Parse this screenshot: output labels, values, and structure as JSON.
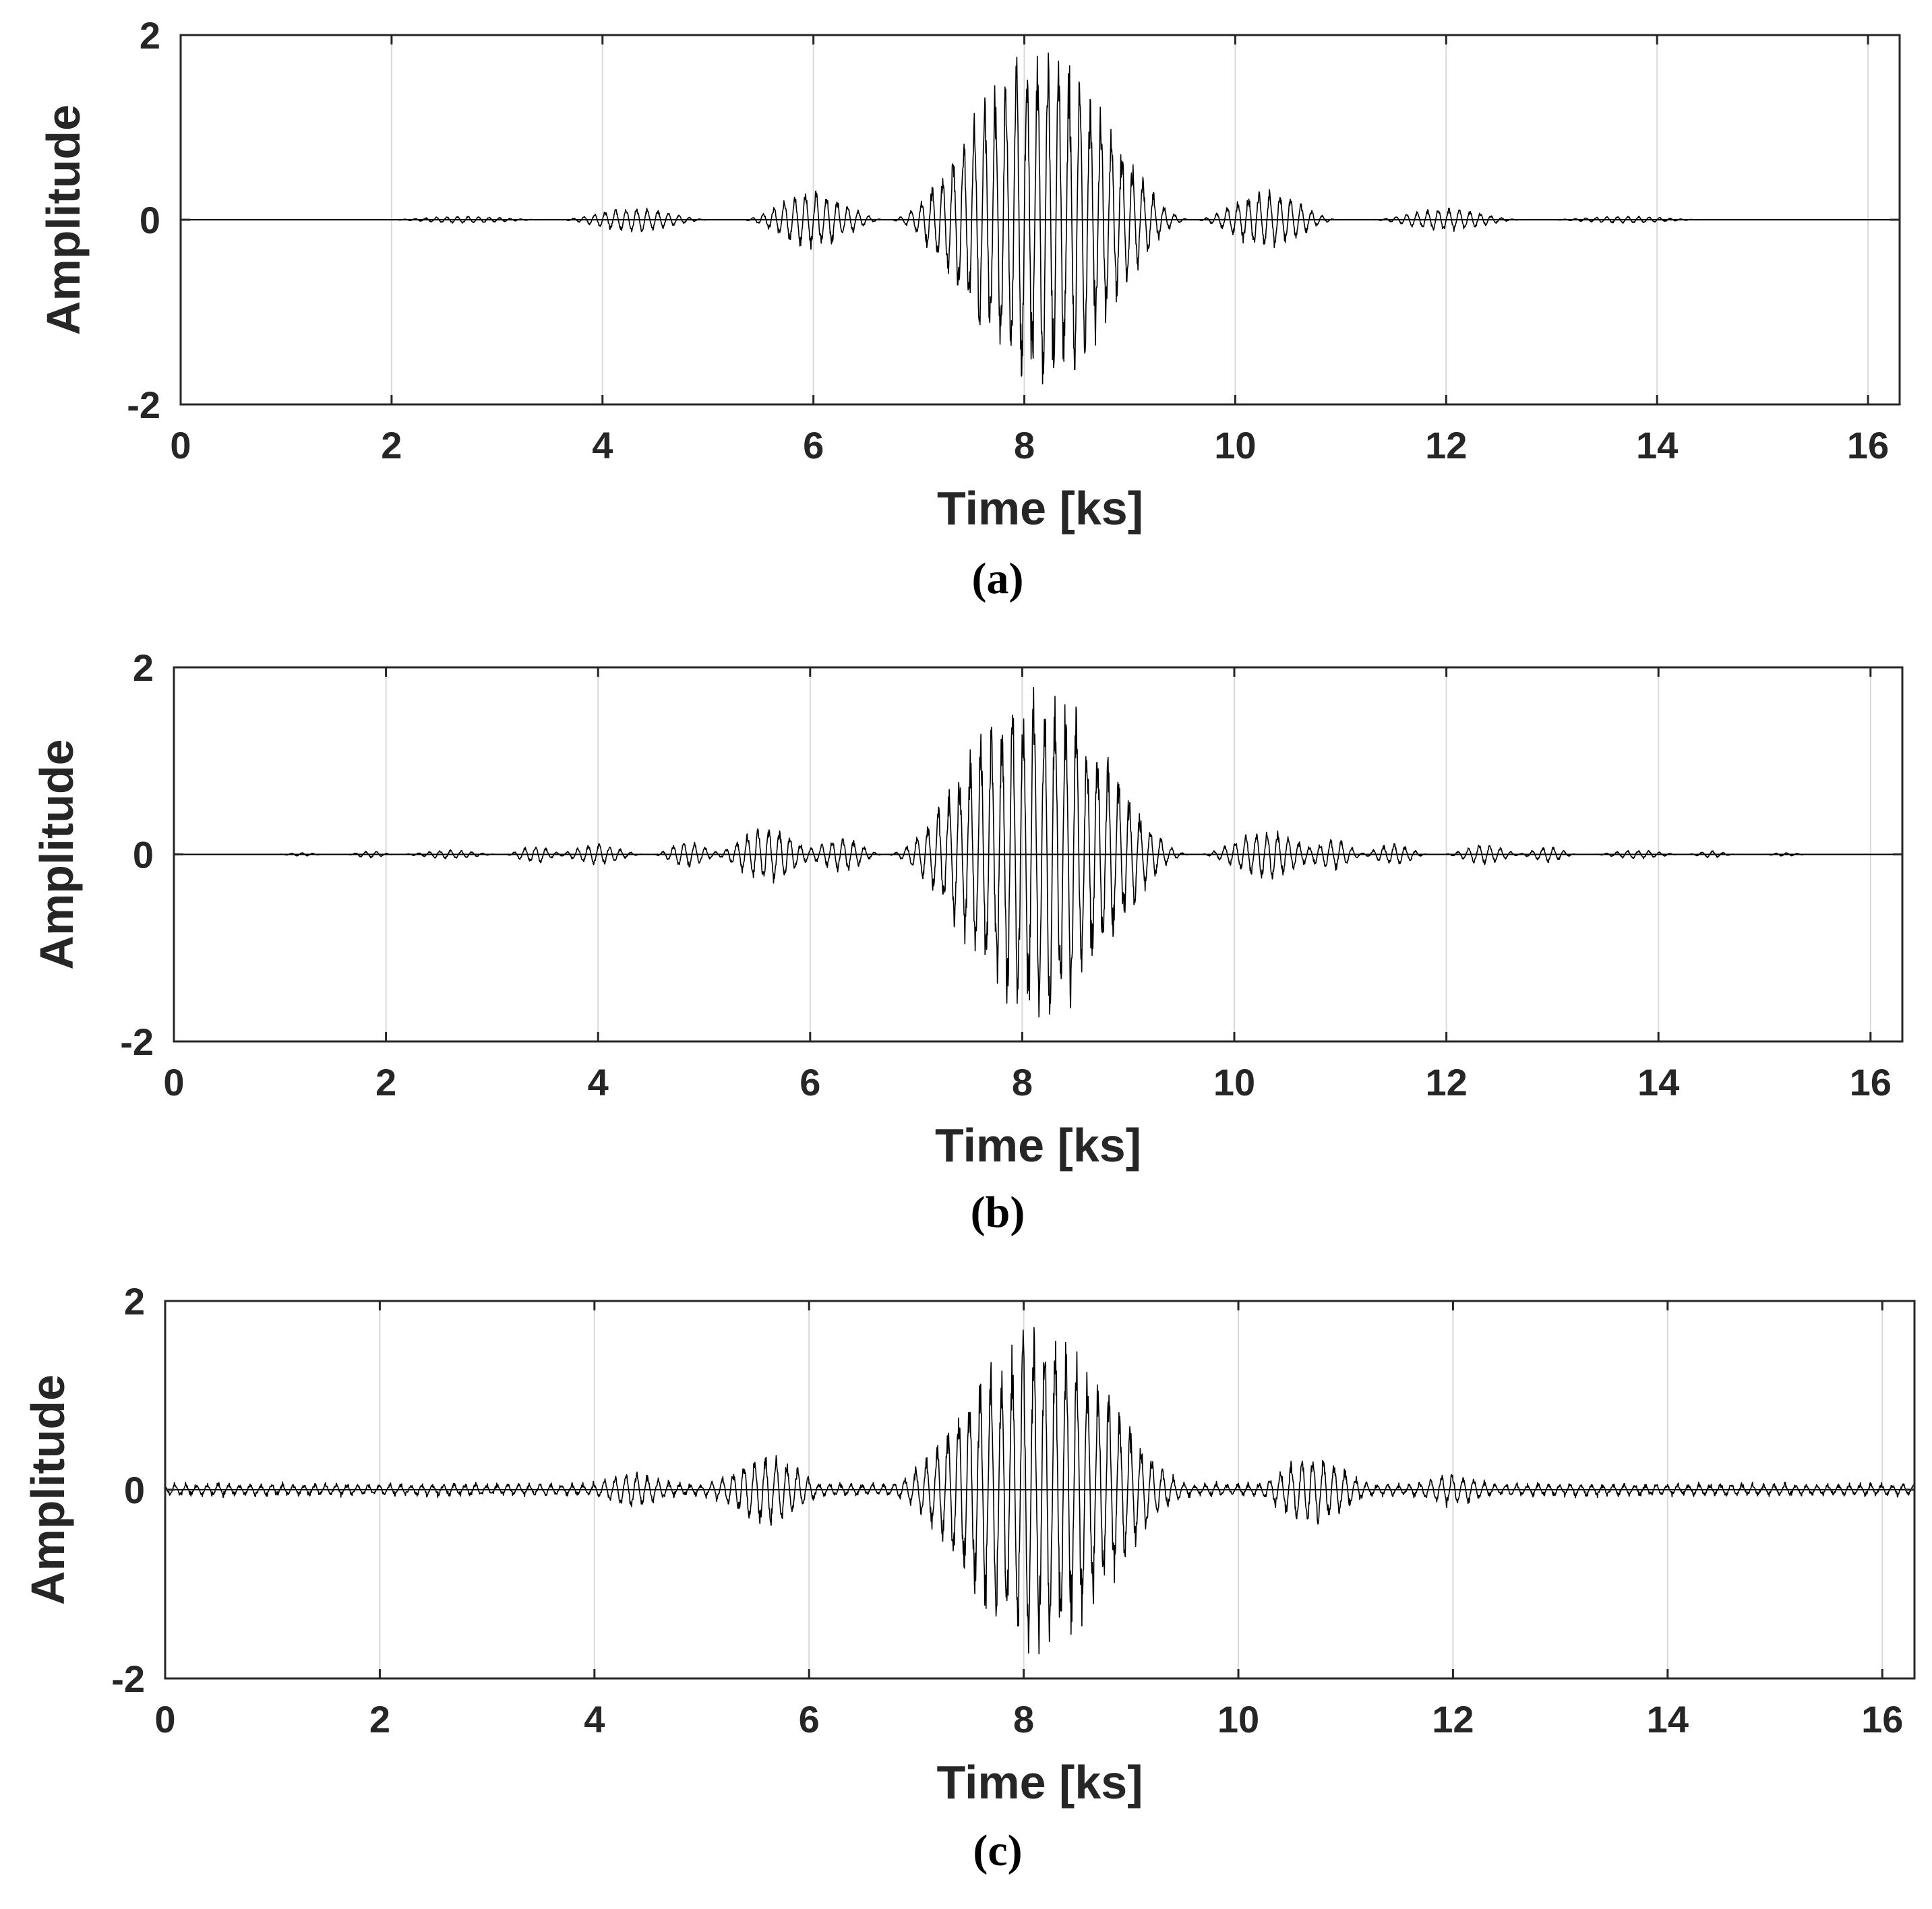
{
  "colors": {
    "signal": "#000000",
    "axes": "#262626",
    "grid": "#d9d9d9",
    "background": "#ffffff"
  },
  "chart_data": [
    {
      "type": "line",
      "caption": "(a)",
      "xlabel": "Time [ks]",
      "ylabel": "Amplitude",
      "xlim": [
        0,
        16.3
      ],
      "ylim": [
        -2,
        2
      ],
      "xticks": [
        0,
        2,
        4,
        6,
        8,
        10,
        12,
        14,
        16
      ],
      "xtick_labels": [
        "0",
        "2",
        "4",
        "6",
        "8",
        "10",
        "12",
        "14",
        "16"
      ],
      "yticks": [
        -2,
        0,
        2
      ],
      "ytick_labels": [
        "-2",
        "0",
        "2"
      ],
      "grid": "vertical",
      "series": [
        {
          "name": "signal",
          "carrier_period_ks": 0.1,
          "noise_floor": 0.0,
          "bursts": [
            {
              "center": 8.15,
              "half_width": 1.45,
              "peak": 1.95
            },
            {
              "center": 6.0,
              "half_width": 0.7,
              "peak": 0.33
            },
            {
              "center": 10.3,
              "half_width": 0.7,
              "peak": 0.33
            },
            {
              "center": 4.3,
              "half_width": 0.75,
              "peak": 0.14
            },
            {
              "center": 12.0,
              "half_width": 0.75,
              "peak": 0.13
            },
            {
              "center": 2.7,
              "half_width": 0.8,
              "peak": 0.04
            },
            {
              "center": 13.7,
              "half_width": 0.8,
              "peak": 0.04
            }
          ]
        }
      ]
    },
    {
      "type": "line",
      "caption": "(b)",
      "xlabel": "Time [ks]",
      "ylabel": "Amplitude",
      "xlim": [
        0,
        16.3
      ],
      "ylim": [
        -2,
        2
      ],
      "xticks": [
        0,
        2,
        4,
        6,
        8,
        10,
        12,
        14,
        16
      ],
      "xtick_labels": [
        "0",
        "2",
        "4",
        "6",
        "8",
        "10",
        "12",
        "14",
        "16"
      ],
      "yticks": [
        -2,
        0,
        2
      ],
      "ytick_labels": [
        "-2",
        "0",
        "2"
      ],
      "grid": "vertical",
      "series": [
        {
          "name": "signal",
          "carrier_period_ks": 0.1,
          "noise_floor": 0.0,
          "bursts": [
            {
              "center": 8.15,
              "half_width": 1.45,
              "peak": 1.9
            },
            {
              "center": 5.6,
              "half_width": 0.55,
              "peak": 0.33
            },
            {
              "center": 6.3,
              "half_width": 0.4,
              "peak": 0.2
            },
            {
              "center": 10.3,
              "half_width": 0.65,
              "peak": 0.27
            },
            {
              "center": 10.95,
              "half_width": 0.3,
              "peak": 0.18
            },
            {
              "center": 4.85,
              "half_width": 0.35,
              "peak": 0.15
            },
            {
              "center": 4.0,
              "half_width": 0.45,
              "peak": 0.12
            },
            {
              "center": 11.5,
              "half_width": 0.35,
              "peak": 0.12
            },
            {
              "center": 12.35,
              "half_width": 0.4,
              "peak": 0.11
            },
            {
              "center": 3.4,
              "half_width": 0.3,
              "peak": 0.1
            },
            {
              "center": 12.95,
              "half_width": 0.3,
              "peak": 0.09
            },
            {
              "center": 2.6,
              "half_width": 0.5,
              "peak": 0.05
            },
            {
              "center": 13.8,
              "half_width": 0.45,
              "peak": 0.05
            },
            {
              "center": 1.85,
              "half_width": 0.25,
              "peak": 0.04
            },
            {
              "center": 14.5,
              "half_width": 0.25,
              "peak": 0.04
            },
            {
              "center": 1.2,
              "half_width": 0.25,
              "peak": 0.02
            },
            {
              "center": 15.2,
              "half_width": 0.25,
              "peak": 0.02
            }
          ]
        }
      ]
    },
    {
      "type": "line",
      "caption": "(c)",
      "xlabel": "Time [ks]",
      "ylabel": "Amplitude",
      "xlim": [
        0,
        16.3
      ],
      "ylim": [
        -2,
        2
      ],
      "xticks": [
        0,
        2,
        4,
        6,
        8,
        10,
        12,
        14,
        16
      ],
      "xtick_labels": [
        "0",
        "2",
        "4",
        "6",
        "8",
        "10",
        "12",
        "14",
        "16"
      ],
      "yticks": [
        -2,
        0,
        2
      ],
      "ytick_labels": [
        "-2",
        "0",
        "2"
      ],
      "grid": "vertical",
      "series": [
        {
          "name": "signal",
          "carrier_period_ks": 0.1,
          "noise_floor": 0.06,
          "bursts": [
            {
              "center": 8.15,
              "half_width": 1.45,
              "peak": 1.75
            },
            {
              "center": 5.6,
              "half_width": 0.6,
              "peak": 0.33
            },
            {
              "center": 10.7,
              "half_width": 0.6,
              "peak": 0.33
            },
            {
              "center": 4.35,
              "half_width": 0.45,
              "peak": 0.12
            },
            {
              "center": 12.0,
              "half_width": 0.45,
              "peak": 0.11
            }
          ]
        }
      ]
    }
  ]
}
